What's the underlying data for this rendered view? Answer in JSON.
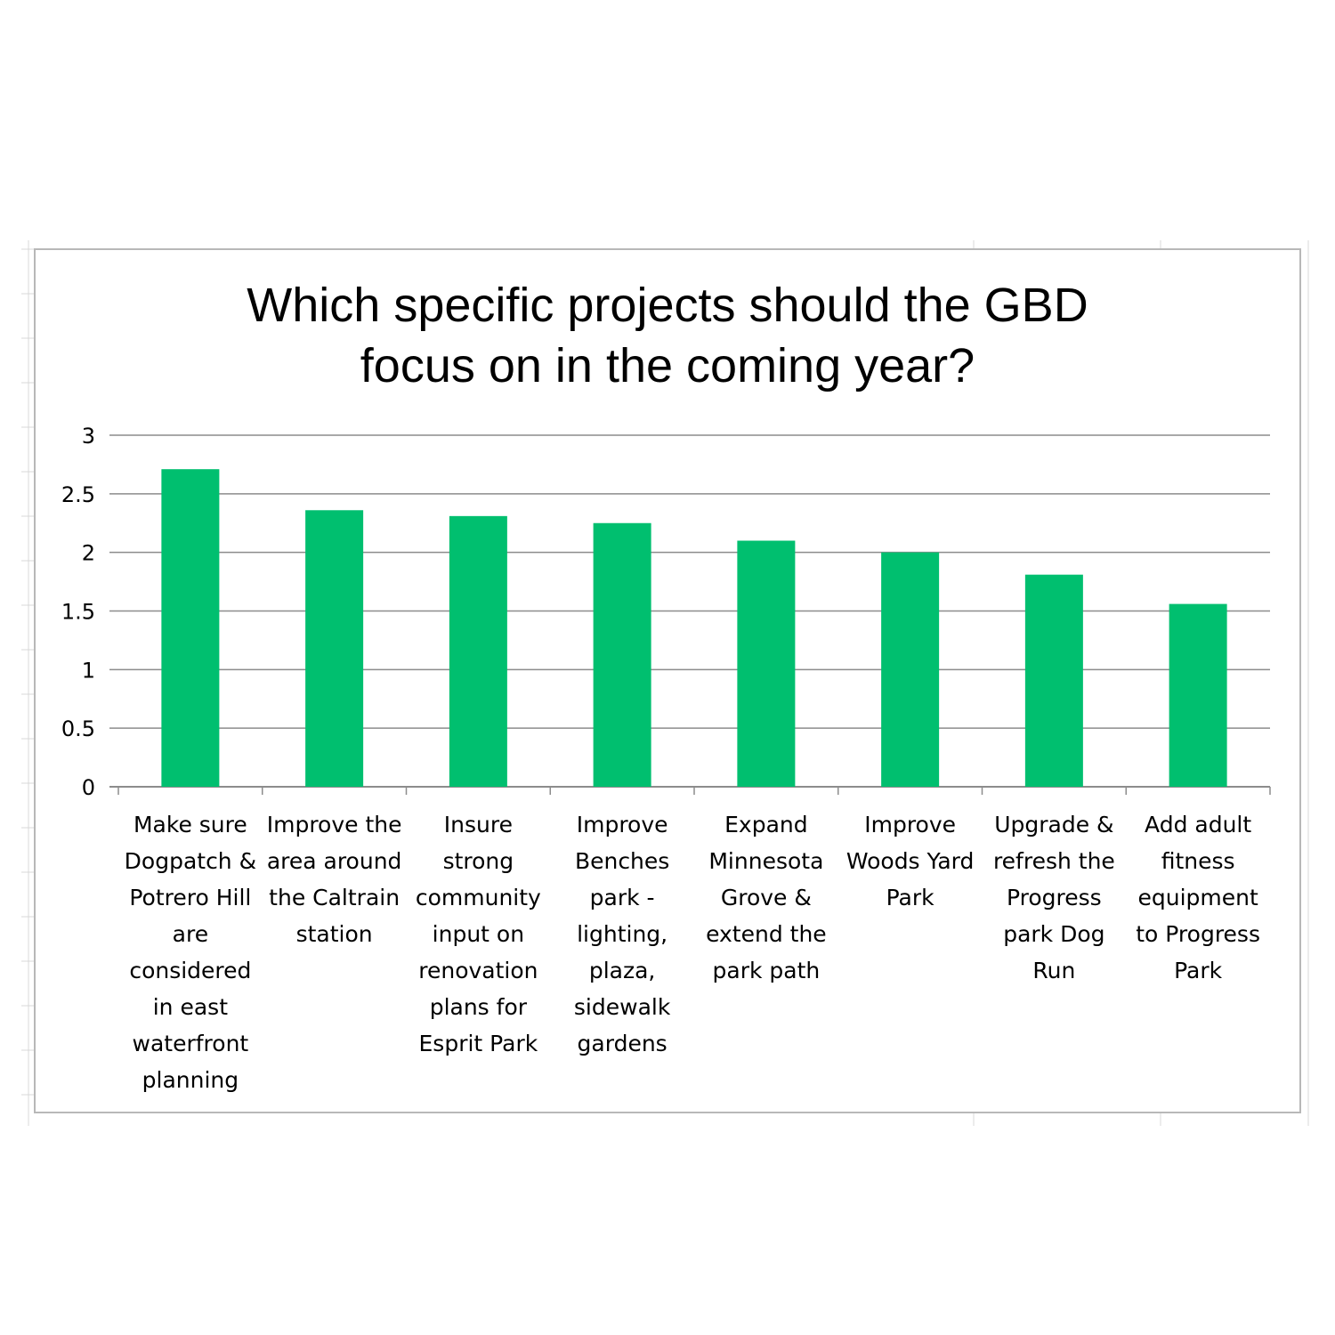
{
  "colors": {
    "bar": "#00bf6f",
    "gridline": "#8c8c8c",
    "frame": "#b8b8b8",
    "sheet_gridline": "#d9d9d9"
  },
  "chart_data": {
    "type": "bar",
    "title": "Which specific projects should the GBD focus on in the coming year?",
    "xlabel": "",
    "ylabel": "",
    "ylim": [
      0,
      3
    ],
    "yticks": [
      "0",
      "0.5",
      "1",
      "1.5",
      "2",
      "2.5",
      "3"
    ],
    "grid": true,
    "legend": "none",
    "categories": [
      "Make sure Dogpatch & Potrero Hill are considered in east waterfront planning",
      "Improve the area around the Caltrain station",
      "Insure strong community input on renovation plans for Esprit Park",
      "Improve Benches park - lighting, plaza, sidewalk gardens",
      "Expand Minnesota Grove & extend the park path",
      "Improve Woods Yard Park",
      "Upgrade & refresh the Progress park Dog Run",
      "Add adult fitness equipment to Progress Park"
    ],
    "values": [
      2.71,
      2.36,
      2.31,
      2.25,
      2.1,
      2.0,
      1.81,
      1.56
    ]
  }
}
